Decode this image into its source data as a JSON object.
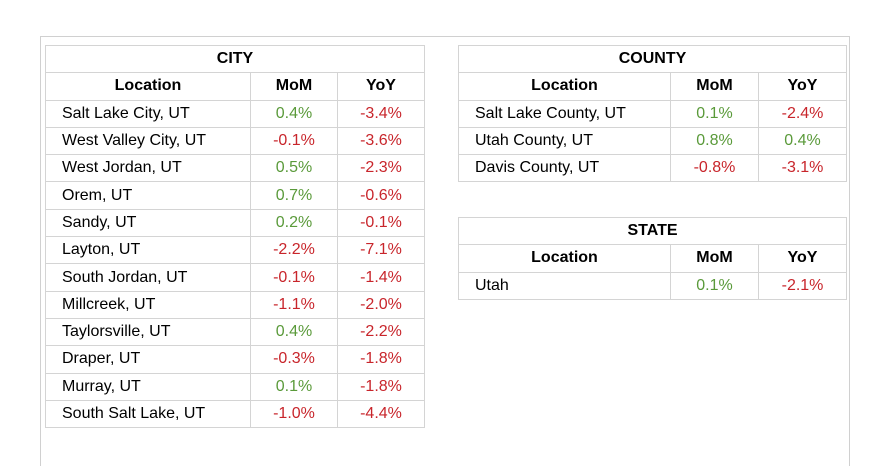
{
  "city": {
    "title": "CITY",
    "headers": [
      "Location",
      "MoM",
      "YoY"
    ],
    "rows": [
      {
        "location": "Salt Lake City, UT",
        "mom": "0.4%",
        "yoy": "-3.4%"
      },
      {
        "location": "West Valley City, UT",
        "mom": "-0.1%",
        "yoy": "-3.6%"
      },
      {
        "location": "West Jordan, UT",
        "mom": "0.5%",
        "yoy": "-2.3%"
      },
      {
        "location": "Orem, UT",
        "mom": "0.7%",
        "yoy": "-0.6%"
      },
      {
        "location": "Sandy, UT",
        "mom": "0.2%",
        "yoy": "-0.1%"
      },
      {
        "location": "Layton, UT",
        "mom": "-2.2%",
        "yoy": "-7.1%"
      },
      {
        "location": "South Jordan, UT",
        "mom": "-0.1%",
        "yoy": "-1.4%"
      },
      {
        "location": "Millcreek, UT",
        "mom": "-1.1%",
        "yoy": "-2.0%"
      },
      {
        "location": "Taylorsville, UT",
        "mom": "0.4%",
        "yoy": "-2.2%"
      },
      {
        "location": "Draper, UT",
        "mom": "-0.3%",
        "yoy": "-1.8%"
      },
      {
        "location": "Murray, UT",
        "mom": "0.1%",
        "yoy": "-1.8%"
      },
      {
        "location": "South Salt Lake, UT",
        "mom": "-1.0%",
        "yoy": "-4.4%"
      }
    ]
  },
  "county": {
    "title": "COUNTY",
    "headers": [
      "Location",
      "MoM",
      "YoY"
    ],
    "rows": [
      {
        "location": "Salt Lake County, UT",
        "mom": "0.1%",
        "yoy": "-2.4%"
      },
      {
        "location": "Utah County, UT",
        "mom": "0.8%",
        "yoy": "0.4%"
      },
      {
        "location": "Davis County, UT",
        "mom": "-0.8%",
        "yoy": "-3.1%"
      }
    ]
  },
  "state": {
    "title": "STATE",
    "headers": [
      "Location",
      "MoM",
      "YoY"
    ],
    "rows": [
      {
        "location": "Utah",
        "mom": "0.1%",
        "yoy": "-2.1%"
      }
    ]
  },
  "colors": {
    "positive": "#5a9a3a",
    "negative": "#c8252b"
  }
}
